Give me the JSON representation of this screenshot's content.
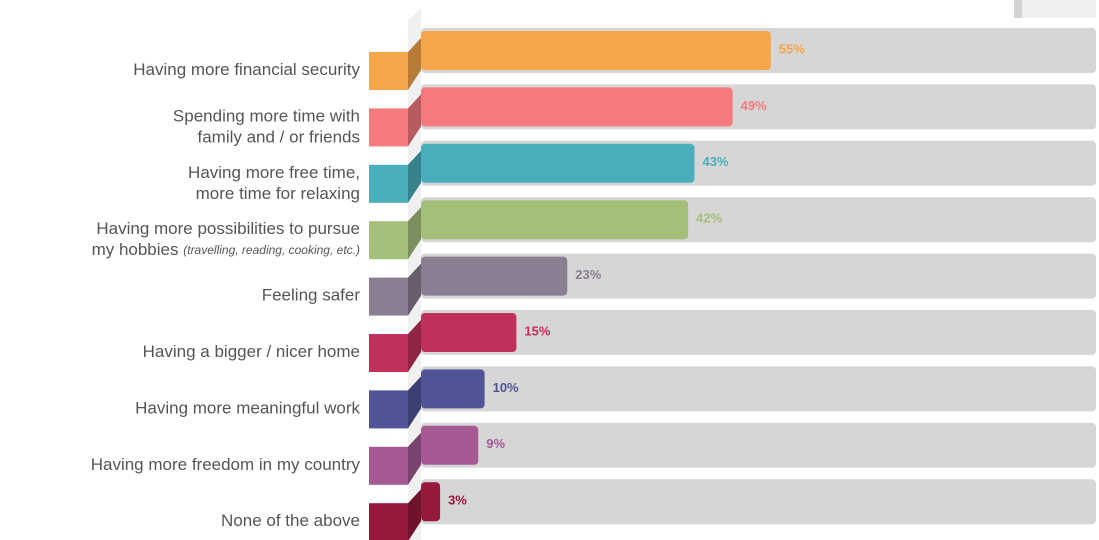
{
  "chart_data": {
    "type": "bar",
    "categories": [
      [
        "Having more financial security"
      ],
      [
        "Spending more time with",
        "family and / or friends"
      ],
      [
        "Having more free time,",
        "more time for relaxing"
      ],
      [
        "Having more possibilities to pursue",
        "my hobbies"
      ],
      [
        "Feeling safer"
      ],
      [
        "Having a bigger / nicer home"
      ],
      [
        "Having more meaningful work"
      ],
      [
        "Having more freedom in my country"
      ],
      [
        "None of the above"
      ]
    ],
    "category_notes": [
      null,
      null,
      null,
      "(travelling, reading, cooking, etc.)",
      null,
      null,
      null,
      null,
      null
    ],
    "values": [
      55,
      49,
      43,
      42,
      23,
      15,
      10,
      9,
      3
    ],
    "value_labels": [
      "55%",
      "49%",
      "43%",
      "42%",
      "23%",
      "15%",
      "10%",
      "9%",
      "3%"
    ],
    "colors": [
      "#f5a54a",
      "#f47a7e",
      "#4aaebc",
      "#a3bf7a",
      "#8b7d92",
      "#c0305a",
      "#515497",
      "#a55a96",
      "#94193a"
    ]
  }
}
